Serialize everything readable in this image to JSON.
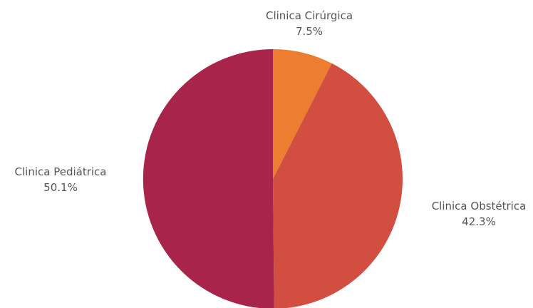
{
  "chart_data": {
    "type": "pie",
    "title": "",
    "start_angle_deg": 0,
    "direction": "clockwise",
    "slices": [
      {
        "label": "Clinica Cirúrgica",
        "value": 7.5,
        "display": "7.5%",
        "color": "#ED7D31"
      },
      {
        "label": "Clinica Obstétrica",
        "value": 42.3,
        "display": "42.3%",
        "color": "#D24E40"
      },
      {
        "label": "Clinica Pediátrica",
        "value": 50.1,
        "display": "50.1%",
        "color": "#A8244A"
      }
    ]
  }
}
